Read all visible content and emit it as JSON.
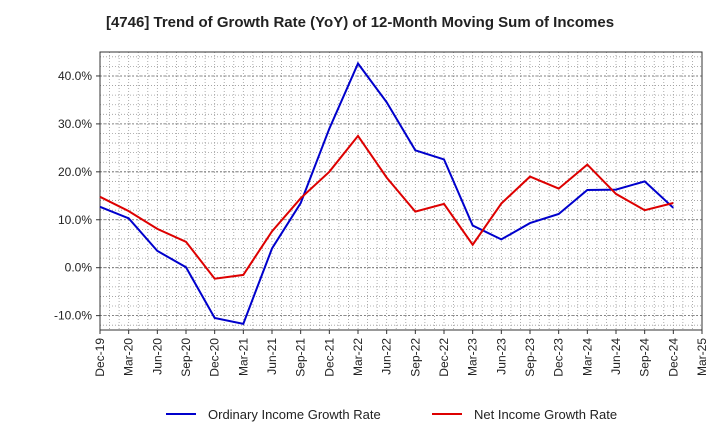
{
  "chart_data": {
    "type": "line",
    "title": "[4746]  Trend of Growth Rate (YoY) of 12-Month Moving Sum of Incomes",
    "xlabel": "",
    "ylabel": "",
    "x": [
      "Dec-19",
      "Mar-20",
      "Jun-20",
      "Sep-20",
      "Dec-20",
      "Mar-21",
      "Jun-21",
      "Sep-21",
      "Dec-21",
      "Mar-22",
      "Jun-22",
      "Sep-22",
      "Dec-22",
      "Mar-23",
      "Jun-23",
      "Sep-23",
      "Dec-23",
      "Mar-24",
      "Jun-24",
      "Sep-24",
      "Dec-24",
      "Mar-25"
    ],
    "ylim": [
      -13,
      45
    ],
    "yticks": [
      -10,
      0,
      10,
      20,
      30,
      40
    ],
    "ytick_labels": [
      "-10.0%",
      "0.0%",
      "10.0%",
      "20.0%",
      "30.0%",
      "40.0%"
    ],
    "grid": true,
    "legend_position": "bottom",
    "series": [
      {
        "name": "Ordinary Income Growth Rate",
        "color": "#0000cc",
        "values": [
          12.7,
          10.3,
          3.5,
          0.1,
          -10.5,
          -11.7,
          4.0,
          13.5,
          29.0,
          42.6,
          34.5,
          24.5,
          22.6,
          8.8,
          5.9,
          9.3,
          11.2,
          16.2,
          16.3,
          18.0,
          12.5,
          null
        ]
      },
      {
        "name": "Net Income Growth Rate",
        "color": "#dd0000",
        "values": [
          14.8,
          11.8,
          8.1,
          5.4,
          -2.3,
          -1.5,
          7.6,
          14.5,
          20.0,
          27.5,
          18.8,
          11.7,
          13.3,
          4.8,
          13.4,
          19.0,
          16.5,
          21.5,
          15.4,
          12.0,
          13.5,
          null
        ]
      }
    ]
  }
}
